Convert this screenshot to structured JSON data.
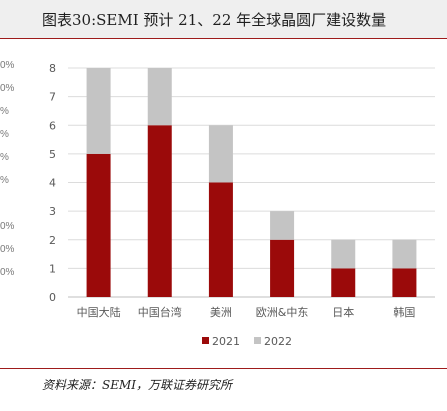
{
  "header": {
    "title": "图表30:SEMI 预计 21、22 年全球晶圆厂建设数量"
  },
  "left_edge_fragments": [
    "0%",
    "0%",
    "%",
    "%",
    "%",
    "%",
    "0%",
    "0%",
    "0%"
  ],
  "colors": {
    "series_2021": "#9b0a0a",
    "series_2022": "#c4c4c4",
    "accent": "#9e1b1b",
    "title_bg": "#efefef"
  },
  "chart_data": {
    "type": "bar",
    "stacked": true,
    "categories": [
      "中国大陆",
      "中国台湾",
      "美洲",
      "欧洲&中东",
      "日本",
      "韩国"
    ],
    "series": [
      {
        "name": "2021",
        "values": [
          5,
          6,
          4,
          2,
          1,
          1
        ]
      },
      {
        "name": "2022",
        "values": [
          3,
          2,
          2,
          1,
          1,
          1
        ]
      }
    ],
    "y_ticks": [
      "0",
      "1",
      "2",
      "3",
      "4",
      "5",
      "6",
      "7",
      "8"
    ],
    "ylim": [
      0,
      8
    ],
    "grid": "horizontal",
    "legend_position": "bottom"
  },
  "footer": {
    "source": "资料来源：SEMI，万联证券研究所"
  }
}
